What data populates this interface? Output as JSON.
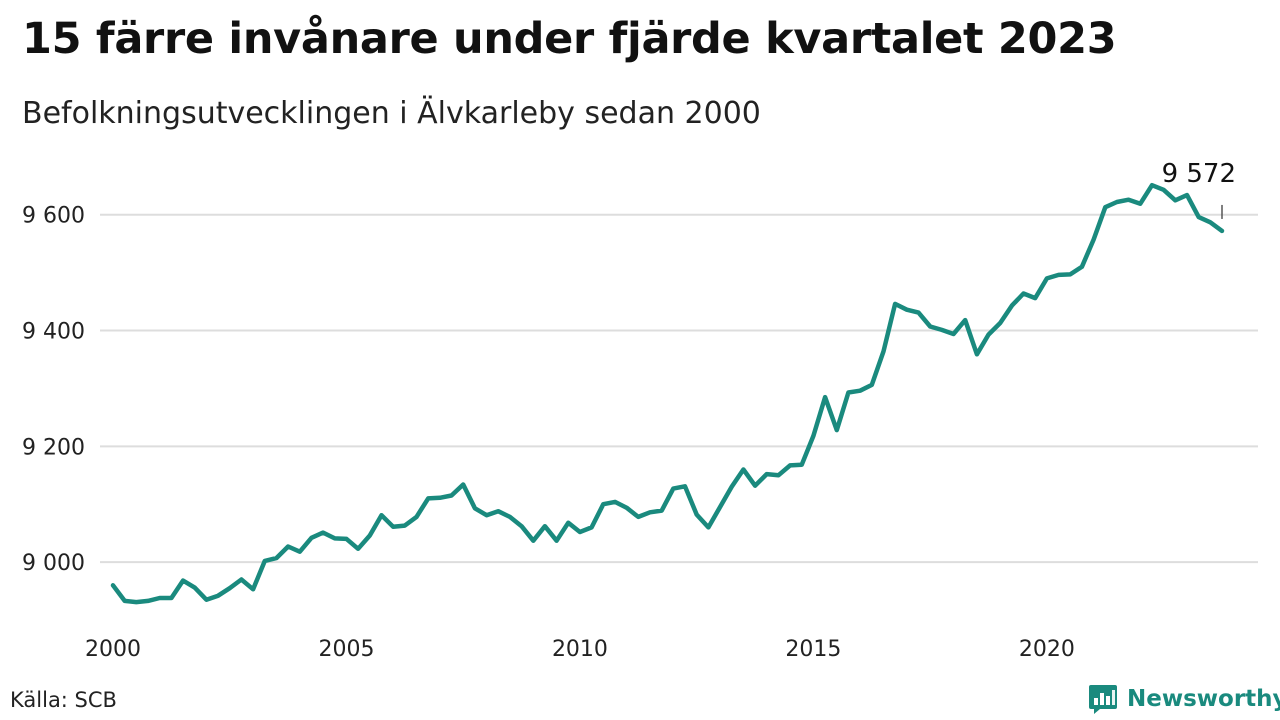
{
  "header": {
    "title": "15 färre invånare under fjärde kvartalet 2023",
    "subtitle": "Befolkningsutvecklingen i Älvkarleby sedan 2000"
  },
  "footer": {
    "source": "Källa: SCB",
    "brand": "Newsworthy"
  },
  "colors": {
    "line": "#1a8a7e",
    "grid": "#dddddd",
    "brand": "#1a8a7e"
  },
  "chart_data": {
    "type": "line",
    "title": "15 färre invånare under fjärde kvartalet 2023",
    "subtitle": "Befolkningsutvecklingen i Älvkarleby sedan 2000",
    "xlabel": "",
    "ylabel": "",
    "x_start": "2000 Q1",
    "x_end": "2023 Q4",
    "x_frequency": "quarterly",
    "xticks": [
      2000,
      2005,
      2010,
      2015,
      2020
    ],
    "yticks": [
      9000,
      9200,
      9400,
      9600
    ],
    "ytick_labels": [
      "9 000",
      "9 200",
      "9 400",
      "9 600"
    ],
    "xlim": [
      2000,
      2023.75
    ],
    "ylim": [
      8900,
      9660
    ],
    "grid": true,
    "legend": "none",
    "last_value_label": "9 572",
    "series": [
      {
        "values": [
          8960,
          8933,
          8931,
          8933,
          8938,
          8938,
          8968,
          8956,
          8935,
          8942,
          8955,
          8970,
          8953,
          9002,
          9007,
          9027,
          9018,
          9042,
          9051,
          9041,
          9040,
          9023,
          9046,
          9081,
          9061,
          9063,
          9078,
          9110,
          9111,
          9115,
          9134,
          9093,
          9081,
          9088,
          9078,
          9062,
          9037,
          9062,
          9037,
          9068,
          9052,
          9060,
          9100,
          9104,
          9094,
          9078,
          9086,
          9089,
          9127,
          9131,
          9082,
          9060,
          9095,
          9130,
          9160,
          9132,
          9152,
          9150,
          9167,
          9168,
          9218,
          9285,
          9228,
          9293,
          9296,
          9306,
          9364,
          9446,
          9436,
          9431,
          9407,
          9401,
          9394,
          9418,
          9359,
          9393,
          9413,
          9443,
          9464,
          9456,
          9490,
          9496,
          9497,
          9510,
          9557,
          9613,
          9622,
          9626,
          9619,
          9651,
          9643,
          9625,
          9634,
          9596,
          9587,
          9572
        ]
      }
    ]
  }
}
